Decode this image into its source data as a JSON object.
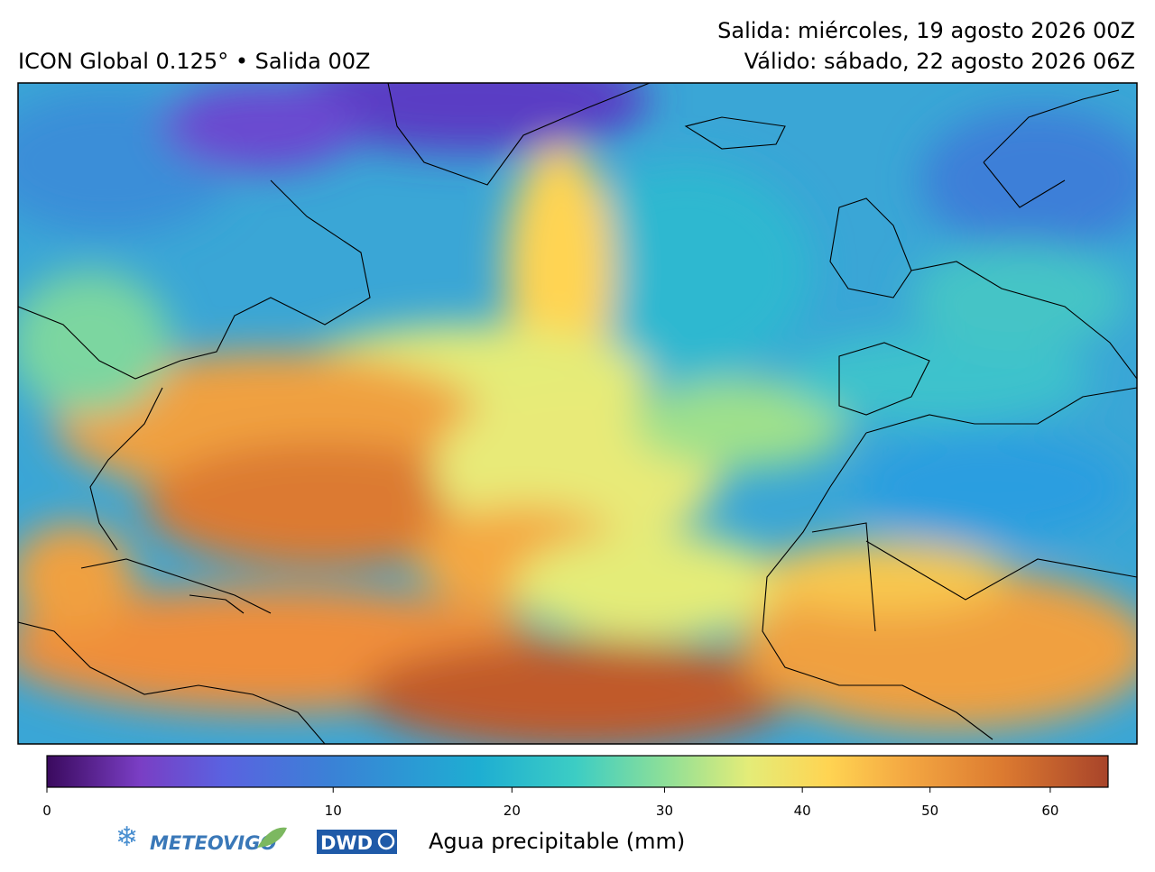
{
  "header": {
    "title": "ICON Global 0.125° • Salida 00Z",
    "run": "Salida: miércoles, 19 agosto 2026 00Z",
    "valid": "Válido: sábado, 22 agosto 2026 06Z"
  },
  "colorbar": {
    "label": "Agua precipitable (mm)",
    "lim": [
      0,
      65
    ],
    "ticks": [
      0,
      10,
      20,
      30,
      40,
      50,
      60
    ],
    "gamma": 0.7,
    "cmap": [
      [
        0,
        "#3a0a5e"
      ],
      [
        2,
        "#7a3ec4"
      ],
      [
        5,
        "#5a62e0"
      ],
      [
        10,
        "#3a82d6"
      ],
      [
        18,
        "#1eaed2"
      ],
      [
        24,
        "#3ccdc4"
      ],
      [
        30,
        "#8ddf98"
      ],
      [
        36,
        "#e4ec78"
      ],
      [
        42,
        "#ffd452"
      ],
      [
        48,
        "#f4a842"
      ],
      [
        56,
        "#dc7a30"
      ],
      [
        65,
        "#a8442a"
      ]
    ]
  },
  "logos": {
    "meteovigo": "METEOVIGO",
    "dwd": "DWD"
  }
}
